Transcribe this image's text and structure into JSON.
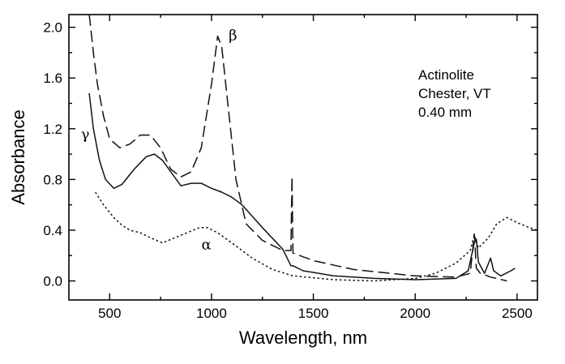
{
  "chart_data": {
    "type": "line",
    "xlabel": "Wavelength, nm",
    "ylabel": "Absorbance",
    "xlim": [
      300,
      2600
    ],
    "ylim": [
      -0.15,
      2.1
    ],
    "xticks": [
      500,
      1000,
      1500,
      2000,
      2500
    ],
    "xtick_labels": [
      "500",
      "1000",
      "1500",
      "2000",
      "2500"
    ],
    "yticks": [
      0.0,
      0.4,
      0.8,
      1.2,
      1.6,
      2.0
    ],
    "ytick_labels": [
      "0.0",
      "0.4",
      "0.8",
      "1.2",
      "1.6",
      "2.0"
    ],
    "annotation": [
      "Actinolite",
      "Chester, VT",
      "0.40 mm"
    ],
    "series": [
      {
        "name": "β",
        "style": "long-dash",
        "label_pos": [
          1105,
          1.9
        ],
        "points": [
          [
            400,
            2.1
          ],
          [
            420,
            1.8
          ],
          [
            440,
            1.55
          ],
          [
            470,
            1.3
          ],
          [
            500,
            1.12
          ],
          [
            550,
            1.05
          ],
          [
            600,
            1.08
          ],
          [
            650,
            1.15
          ],
          [
            700,
            1.15
          ],
          [
            750,
            1.05
          ],
          [
            800,
            0.88
          ],
          [
            850,
            0.82
          ],
          [
            900,
            0.86
          ],
          [
            950,
            1.05
          ],
          [
            1000,
            1.55
          ],
          [
            1030,
            1.93
          ],
          [
            1050,
            1.85
          ],
          [
            1080,
            1.4
          ],
          [
            1120,
            0.8
          ],
          [
            1170,
            0.45
          ],
          [
            1250,
            0.32
          ],
          [
            1350,
            0.24
          ],
          [
            1390,
            0.24
          ],
          [
            1395,
            0.82
          ],
          [
            1400,
            0.22
          ],
          [
            1500,
            0.16
          ],
          [
            1700,
            0.09
          ],
          [
            2000,
            0.04
          ],
          [
            2200,
            0.03
          ],
          [
            2270,
            0.06
          ],
          [
            2290,
            0.37
          ],
          [
            2300,
            0.1
          ],
          [
            2320,
            0.06
          ],
          [
            2370,
            0.03
          ],
          [
            2400,
            0.02
          ],
          [
            2450,
            0.0
          ]
        ]
      },
      {
        "name": "γ",
        "style": "solid",
        "label_pos": [
          380,
          1.12
        ],
        "points": [
          [
            400,
            1.48
          ],
          [
            420,
            1.2
          ],
          [
            450,
            0.95
          ],
          [
            480,
            0.8
          ],
          [
            520,
            0.73
          ],
          [
            560,
            0.76
          ],
          [
            620,
            0.88
          ],
          [
            680,
            0.98
          ],
          [
            720,
            1.0
          ],
          [
            760,
            0.95
          ],
          [
            800,
            0.86
          ],
          [
            850,
            0.75
          ],
          [
            900,
            0.77
          ],
          [
            950,
            0.77
          ],
          [
            1000,
            0.73
          ],
          [
            1050,
            0.7
          ],
          [
            1100,
            0.66
          ],
          [
            1150,
            0.6
          ],
          [
            1250,
            0.42
          ],
          [
            1350,
            0.25
          ],
          [
            1390,
            0.12
          ],
          [
            1400,
            0.12
          ],
          [
            1450,
            0.08
          ],
          [
            1600,
            0.04
          ],
          [
            1800,
            0.02
          ],
          [
            2000,
            0.01
          ],
          [
            2200,
            0.02
          ],
          [
            2260,
            0.08
          ],
          [
            2290,
            0.3
          ],
          [
            2300,
            0.33
          ],
          [
            2310,
            0.15
          ],
          [
            2340,
            0.06
          ],
          [
            2370,
            0.18
          ],
          [
            2385,
            0.08
          ],
          [
            2420,
            0.04
          ],
          [
            2470,
            0.08
          ],
          [
            2490,
            0.1
          ]
        ]
      },
      {
        "name": "α",
        "style": "dotted",
        "label_pos": [
          975,
          0.25
        ],
        "points": [
          [
            430,
            0.7
          ],
          [
            470,
            0.6
          ],
          [
            520,
            0.5
          ],
          [
            560,
            0.44
          ],
          [
            600,
            0.4
          ],
          [
            650,
            0.38
          ],
          [
            700,
            0.34
          ],
          [
            760,
            0.3
          ],
          [
            820,
            0.34
          ],
          [
            880,
            0.38
          ],
          [
            940,
            0.42
          ],
          [
            980,
            0.42
          ],
          [
            1030,
            0.38
          ],
          [
            1100,
            0.3
          ],
          [
            1200,
            0.18
          ],
          [
            1300,
            0.09
          ],
          [
            1400,
            0.04
          ],
          [
            1600,
            0.01
          ],
          [
            1800,
            0.0
          ],
          [
            2000,
            0.02
          ],
          [
            2100,
            0.06
          ],
          [
            2200,
            0.14
          ],
          [
            2270,
            0.24
          ],
          [
            2290,
            0.36
          ],
          [
            2310,
            0.26
          ],
          [
            2360,
            0.34
          ],
          [
            2400,
            0.45
          ],
          [
            2450,
            0.5
          ],
          [
            2500,
            0.46
          ],
          [
            2560,
            0.42
          ],
          [
            2600,
            0.4
          ]
        ]
      }
    ]
  }
}
